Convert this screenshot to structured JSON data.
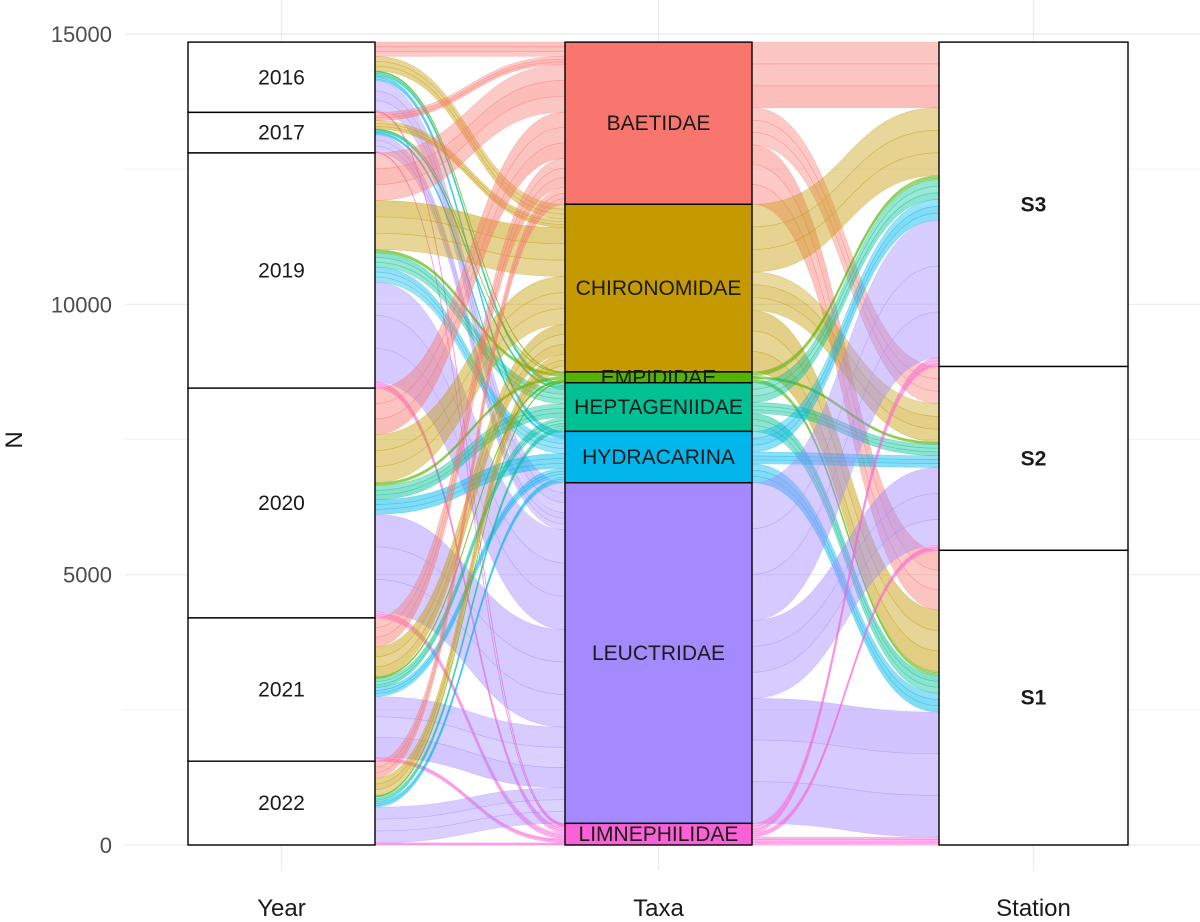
{
  "chart_data": {
    "type": "alluvial",
    "ylabel": "N",
    "ylim": [
      0,
      15000
    ],
    "y_ticks": [
      0,
      5000,
      10000,
      15000
    ],
    "y_tick_labels": [
      "0",
      "5000",
      "10000",
      "15000"
    ],
    "grid": true,
    "axes": [
      {
        "name": "Year",
        "label_weight": "normal",
        "strata": [
          {
            "label": "2016",
            "from": 13550,
            "to": 14850
          },
          {
            "label": "2017",
            "from": 12800,
            "to": 13550
          },
          {
            "label": "2019",
            "from": 8450,
            "to": 12800
          },
          {
            "label": "2020",
            "from": 4200,
            "to": 8450
          },
          {
            "label": "2021",
            "from": 1550,
            "to": 4200
          },
          {
            "label": "2022",
            "from": 0,
            "to": 1550
          }
        ]
      },
      {
        "name": "Taxa",
        "label_weight": "normal",
        "strata": [
          {
            "label": "BAETIDAE",
            "from": 11850,
            "to": 14850,
            "color": "#F8766D"
          },
          {
            "label": "CHIRONOMIDAE",
            "from": 8750,
            "to": 11850,
            "color": "#C49A00"
          },
          {
            "label": "EMPIDIDAE",
            "from": 8550,
            "to": 8750,
            "color": "#53B400"
          },
          {
            "label": "HEPTAGENIIDAE",
            "from": 7650,
            "to": 8550,
            "color": "#00C094"
          },
          {
            "label": "HYDRACARINA",
            "from": 6700,
            "to": 7650,
            "color": "#00B6EB"
          },
          {
            "label": "LEUCTRIDAE",
            "from": 400,
            "to": 6700,
            "color": "#A58AFF"
          },
          {
            "label": "LIMNEPHILIDAE",
            "from": 0,
            "to": 400,
            "color": "#FB61D7"
          }
        ]
      },
      {
        "name": "Station",
        "label_weight": "bold",
        "strata": [
          {
            "label": "S3",
            "from": 8850,
            "to": 14850
          },
          {
            "label": "S2",
            "from": 5450,
            "to": 8850
          },
          {
            "label": "S1",
            "from": 0,
            "to": 5450
          }
        ]
      }
    ]
  }
}
